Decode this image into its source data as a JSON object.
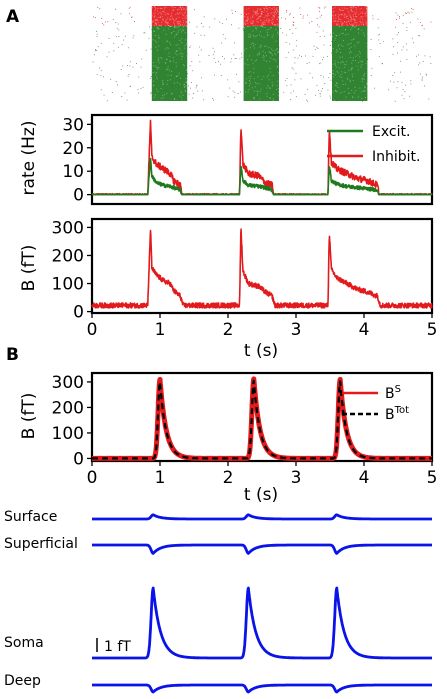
{
  "panel_labels": {
    "a": "A",
    "b": "B"
  },
  "colors": {
    "excit": "#1f7a1f",
    "inhib": "#e31a1c",
    "trace": "#0a14e8",
    "dashed": "#000000",
    "axis": "#000000"
  },
  "chart_data": [
    {
      "id": "raster",
      "type": "scatter",
      "title": "",
      "description_series": [
        {
          "name": "Excit.",
          "color": "#1f7a1f",
          "burst_windows_s": [
            [
              0.85,
              1.3
            ],
            [
              2.2,
              2.65
            ],
            [
              3.5,
              4.2
            ]
          ]
        },
        {
          "name": "Inhibit.",
          "color": "#e31a1c",
          "burst_windows_s": [
            [
              0.85,
              1.3
            ],
            [
              2.2,
              2.65
            ],
            [
              3.5,
              4.2
            ]
          ]
        }
      ],
      "xlim": [
        0,
        5
      ]
    },
    {
      "id": "rate",
      "type": "line",
      "xlabel": "",
      "ylabel": "rate (Hz)",
      "xlim": [
        0,
        5
      ],
      "ylim": [
        -4,
        34
      ],
      "yticks": [
        "0",
        "10",
        "20",
        "30"
      ],
      "yticks_values": [
        0,
        10,
        20,
        30
      ],
      "legend": "top-right",
      "series": [
        {
          "name": "Excit.",
          "color": "#1f7a1f",
          "x": [
            0,
            0.82,
            0.86,
            0.88,
            0.95,
            1.05,
            1.15,
            1.2,
            1.25,
            1.3,
            1.32,
            2.0,
            2.17,
            2.19,
            2.22,
            2.3,
            2.45,
            2.55,
            2.65,
            2.67,
            3.4,
            3.47,
            3.49,
            3.52,
            3.6,
            3.75,
            3.9,
            4.05,
            4.2,
            4.22,
            5
          ],
          "y": [
            0,
            0,
            16,
            8,
            5,
            4,
            3.5,
            3,
            2.5,
            2,
            0,
            0,
            0,
            13,
            6,
            4,
            3.5,
            3,
            2,
            0,
            0,
            0,
            13,
            6,
            4.5,
            3.5,
            3,
            2.5,
            2,
            0,
            0
          ]
        },
        {
          "name": "Inhibit.",
          "color": "#e31a1c",
          "x": [
            0,
            0.82,
            0.86,
            0.88,
            0.95,
            1.05,
            1.15,
            1.2,
            1.25,
            1.3,
            1.32,
            2.0,
            2.17,
            2.19,
            2.22,
            2.3,
            2.45,
            2.55,
            2.65,
            2.67,
            3.4,
            3.47,
            3.49,
            3.52,
            3.6,
            3.75,
            3.9,
            4.05,
            4.2,
            4.22,
            5
          ],
          "y": [
            0,
            0,
            31,
            16,
            13,
            11,
            9,
            6,
            5,
            4,
            0,
            0,
            0,
            30,
            13,
            9,
            8,
            5,
            4,
            0,
            0,
            0,
            29,
            14,
            11,
            9,
            7,
            6,
            4,
            0,
            0
          ]
        }
      ]
    },
    {
      "id": "field",
      "type": "line",
      "xlabel": "t (s)",
      "ylabel": "B (fT)",
      "xlim": [
        0,
        5
      ],
      "ylim": [
        -5,
        330
      ],
      "xticks": [
        "0",
        "1",
        "2",
        "3",
        "4",
        "5"
      ],
      "xticks_values": [
        0,
        1,
        2,
        3,
        4,
        5
      ],
      "yticks": [
        "0",
        "100",
        "200",
        "300"
      ],
      "yticks_values": [
        0,
        100,
        200,
        300
      ],
      "series": [
        {
          "name": "B",
          "color": "#e31a1c",
          "x": [
            0,
            0.82,
            0.86,
            0.88,
            0.95,
            1.05,
            1.15,
            1.2,
            1.25,
            1.3,
            1.34,
            2.0,
            2.17,
            2.19,
            2.22,
            2.3,
            2.45,
            2.55,
            2.65,
            2.69,
            3.4,
            3.47,
            3.49,
            3.52,
            3.6,
            3.75,
            3.9,
            4.05,
            4.2,
            4.24,
            5
          ],
          "y": [
            22,
            22,
            295,
            155,
            130,
            110,
            100,
            75,
            65,
            55,
            22,
            22,
            22,
            300,
            145,
            100,
            90,
            70,
            55,
            22,
            22,
            22,
            285,
            150,
            120,
            100,
            80,
            70,
            55,
            22,
            22
          ]
        }
      ]
    },
    {
      "id": "bsum",
      "type": "line",
      "xlabel": "t (s)",
      "ylabel": "B (fT)",
      "xlim": [
        0,
        5
      ],
      "ylim": [
        -10,
        335
      ],
      "xticks": [
        "0",
        "1",
        "2",
        "3",
        "4",
        "5"
      ],
      "xticks_values": [
        0,
        1,
        2,
        3,
        4,
        5
      ],
      "yticks": [
        "0",
        "100",
        "200",
        "300"
      ],
      "yticks_values": [
        0,
        100,
        200,
        300
      ],
      "legend": "top-right",
      "series": [
        {
          "name": "B",
          "name_sup": "S",
          "color": "#e31a1c",
          "style": "solid",
          "peaks_s": [
            1.0,
            2.38,
            3.65
          ],
          "peak_values": [
            310,
            312,
            310
          ],
          "baseline": 0
        },
        {
          "name": "B",
          "name_sup": "Tot",
          "color": "#000000",
          "style": "dashed",
          "peaks_s": [
            1.0,
            2.38,
            3.65
          ],
          "peak_values": [
            300,
            305,
            302
          ],
          "baseline": 0
        }
      ]
    },
    {
      "id": "layers",
      "type": "line",
      "xlim": [
        0,
        5
      ],
      "scale_bar_label": "1 fT",
      "series": [
        {
          "name": "Surface",
          "color": "#0a14e8",
          "peaks_s": [
            0.9,
            2.3,
            3.6
          ],
          "amplitude": 0.3
        },
        {
          "name": "Superficial",
          "color": "#0a14e8",
          "peaks_s": [
            0.9,
            2.3,
            3.6
          ],
          "amplitude": -0.6
        },
        {
          "name": "Soma",
          "color": "#0a14e8",
          "peaks_s": [
            0.9,
            2.3,
            3.6
          ],
          "amplitude": 5.0
        },
        {
          "name": "Deep",
          "color": "#0a14e8",
          "peaks_s": [
            0.9,
            2.3,
            3.6
          ],
          "amplitude": -0.5
        }
      ]
    }
  ]
}
